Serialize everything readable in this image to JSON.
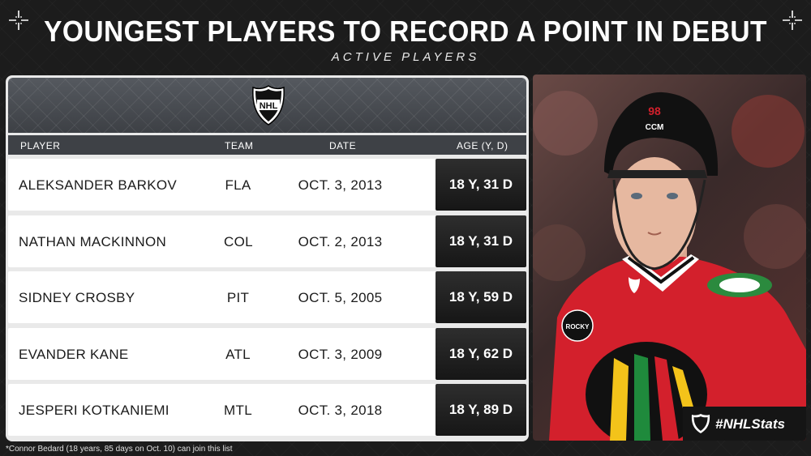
{
  "header": {
    "title": "YOUNGEST PLAYERS TO RECORD A POINT IN DEBUT",
    "subtitle": "ACTIVE PLAYERS"
  },
  "table": {
    "columns": {
      "player": "PLAYER",
      "team": "TEAM",
      "date": "DATE",
      "age": "AGE (Y, D)"
    },
    "rows": [
      {
        "player": "ALEKSANDER BARKOV",
        "team": "FLA",
        "date": "OCT. 3, 2013",
        "age": "18 Y, 31 D"
      },
      {
        "player": "NATHAN MACKINNON",
        "team": "COL",
        "date": "OCT. 2, 2013",
        "age": "18 Y, 31 D"
      },
      {
        "player": "SIDNEY CROSBY",
        "team": "PIT",
        "date": "OCT. 5, 2005",
        "age": "18 Y, 59 D"
      },
      {
        "player": "EVANDER KANE",
        "team": "ATL",
        "date": "OCT. 3, 2009",
        "age": "18 Y, 62 D"
      },
      {
        "player": "JESPERI KOTKANIEMI",
        "team": "MTL",
        "date": "OCT. 3, 2018",
        "age": "18 Y, 89 D"
      }
    ]
  },
  "footnote": "*Connor Bedard (18 years, 85 days on Oct. 10) can join this list",
  "hashtag": "#NHLStats",
  "logo": {
    "text": "NHL",
    "icon": "nhl-shield-icon"
  },
  "photo": {
    "helmet_number": "98",
    "helmet_brand": "CCM",
    "patch_text": "ROCKY"
  },
  "colors": {
    "background": "#1c1c1c",
    "panel": "#e9e9e9",
    "header_bar": "#3e4146",
    "age_cell": "#1b1b1b",
    "jersey_red": "#d3202c"
  }
}
